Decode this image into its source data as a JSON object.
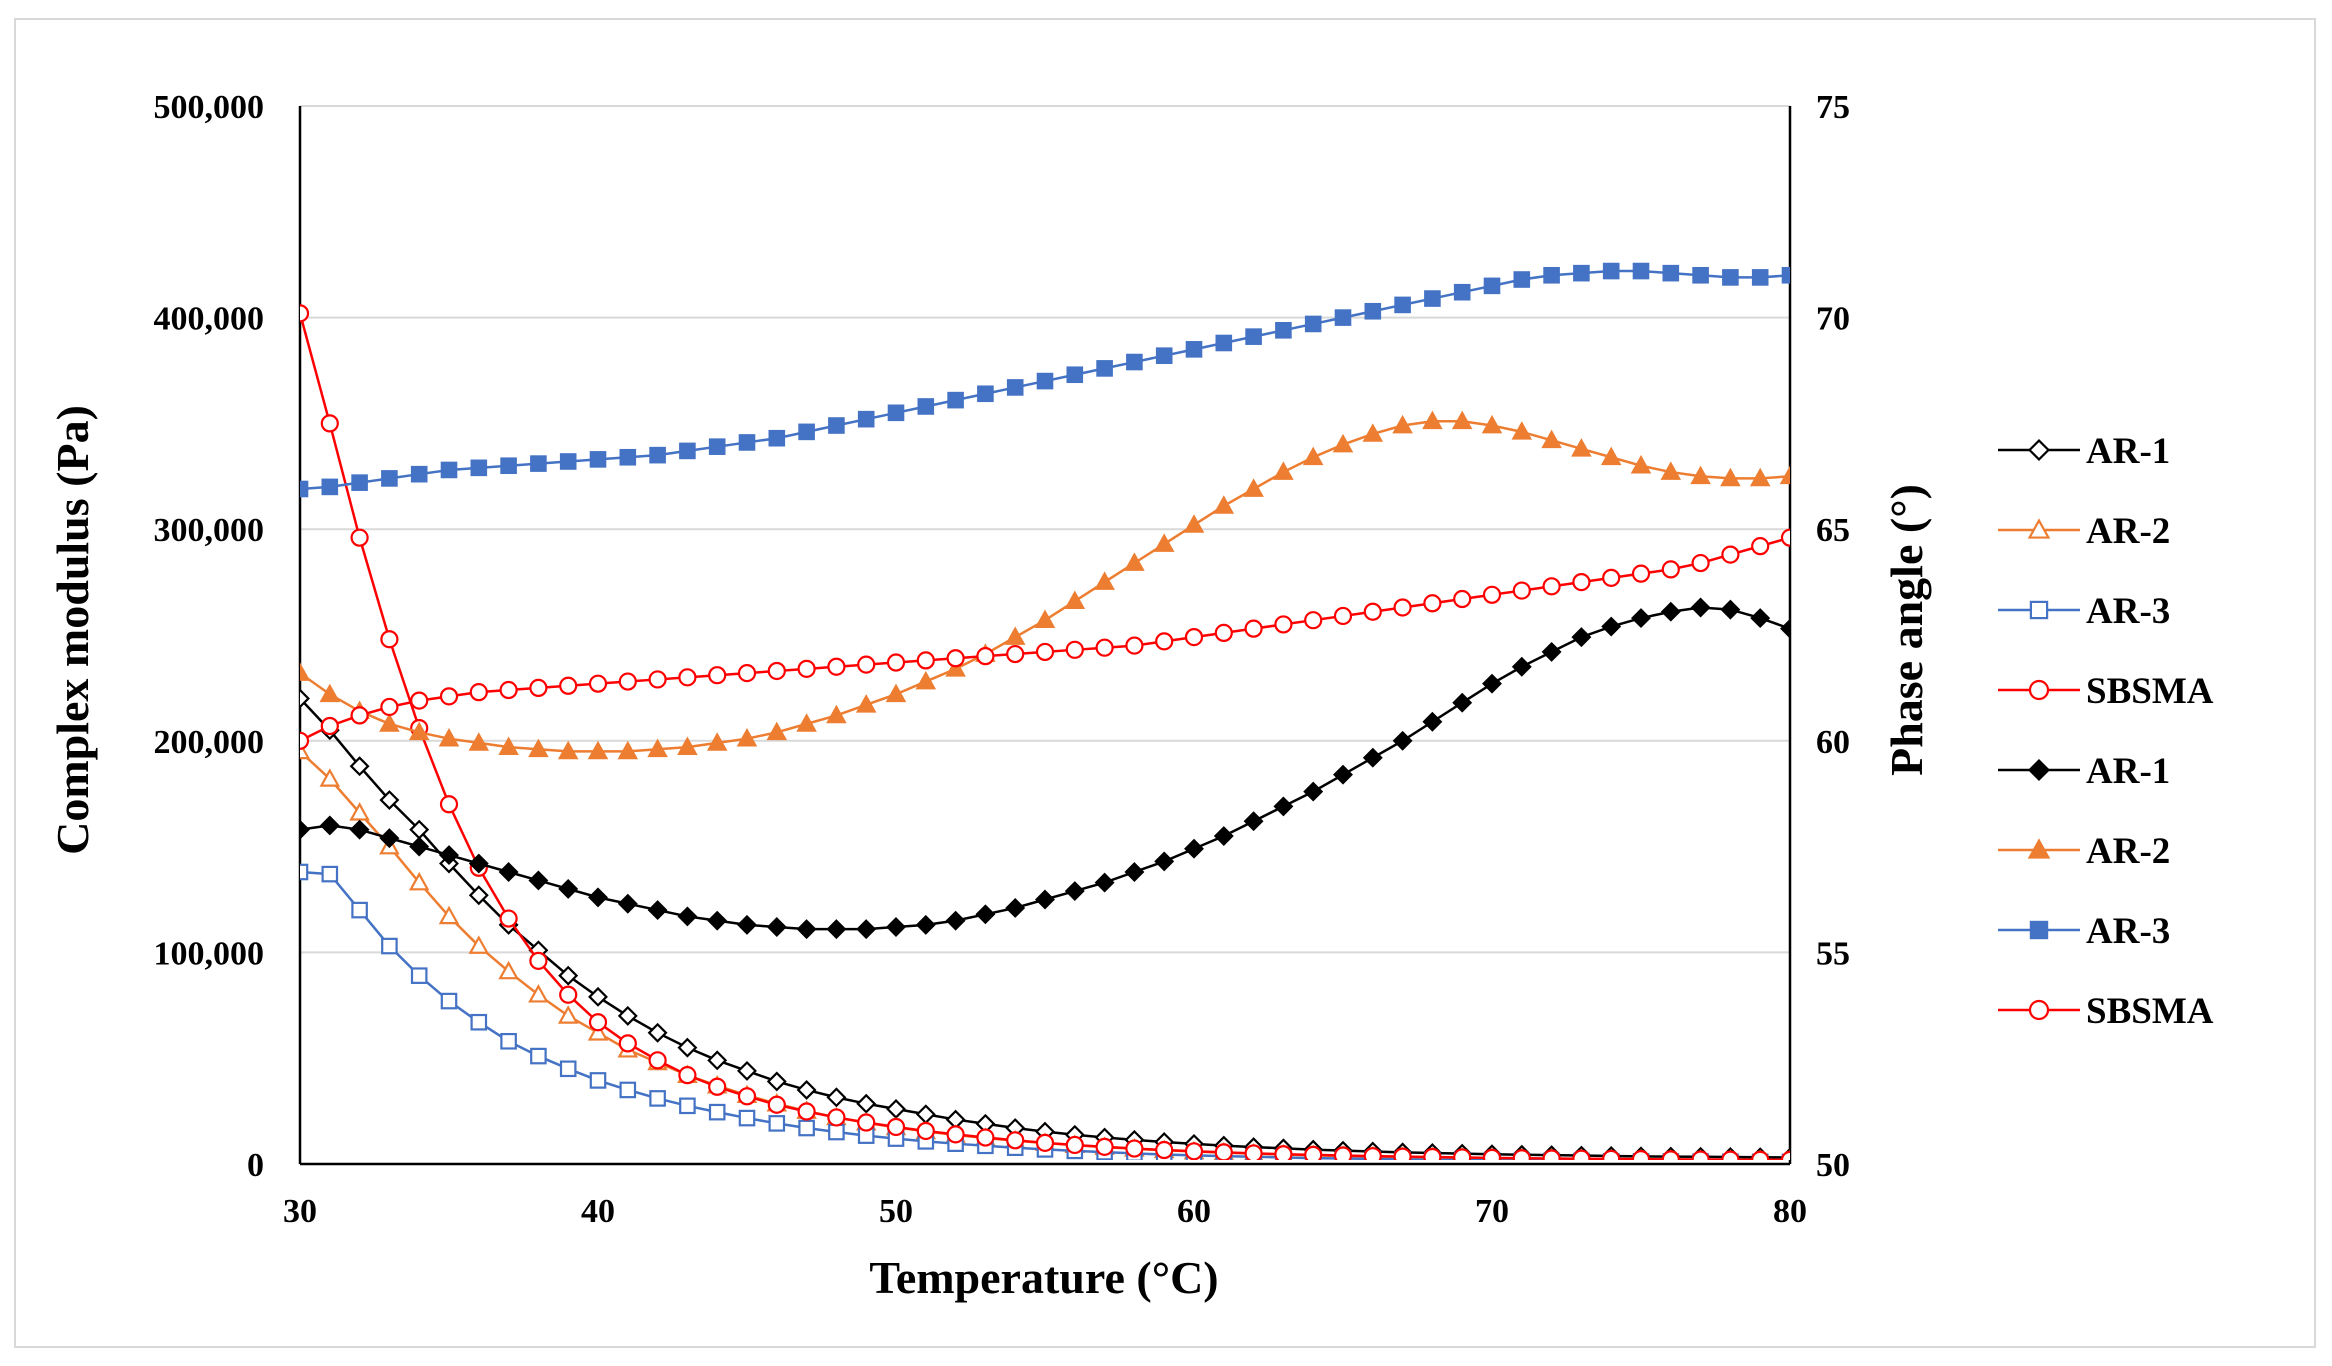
{
  "chart_data": {
    "type": "line",
    "title": "",
    "xlabel": "Temperature (°C)",
    "ylabel": "Complex modulus (Pa)",
    "y2label": "Phase angle (°)",
    "xlim": [
      30,
      80
    ],
    "ylim": [
      0,
      500000
    ],
    "y2lim": [
      50,
      75
    ],
    "x_ticks": [
      30,
      40,
      50,
      60,
      70,
      80
    ],
    "x_tick_labels": [
      "30",
      "40",
      "50",
      "60",
      "70",
      "80"
    ],
    "y_ticks": [
      0,
      100000,
      200000,
      300000,
      400000,
      500000
    ],
    "y_tick_labels": [
      "0",
      "100,000",
      "200,000",
      "300,000",
      "400,000",
      "500,000"
    ],
    "y2_ticks": [
      50,
      55,
      60,
      65,
      70,
      75
    ],
    "y2_tick_labels": [
      "50",
      "55",
      "60",
      "65",
      "70",
      "75"
    ],
    "grid": "horizontal",
    "legend_position": "right",
    "x": [
      30,
      31,
      32,
      33,
      34,
      35,
      36,
      37,
      38,
      39,
      40,
      41,
      42,
      43,
      44,
      45,
      46,
      47,
      48,
      49,
      50,
      51,
      52,
      53,
      54,
      55,
      56,
      57,
      58,
      59,
      60,
      61,
      62,
      63,
      64,
      65,
      66,
      67,
      68,
      69,
      70,
      71,
      72,
      73,
      74,
      75,
      76,
      77,
      78,
      79,
      80
    ],
    "series": [
      {
        "name": "AR-1",
        "axis": "left",
        "marker": "diamond-open",
        "color": "#000000",
        "values": [
          220000,
          205000,
          188000,
          172000,
          158000,
          142000,
          127000,
          113000,
          101000,
          89000,
          79000,
          70000,
          62000,
          55000,
          49000,
          44000,
          39000,
          35000,
          31500,
          28500,
          26000,
          23500,
          21000,
          19000,
          17000,
          15300,
          13800,
          12500,
          11400,
          10400,
          9500,
          8700,
          8000,
          7400,
          6800,
          6300,
          5900,
          5500,
          5200,
          4900,
          4600,
          4400,
          4200,
          4000,
          3800,
          3600,
          3500,
          3400,
          3300,
          3200,
          3100
        ]
      },
      {
        "name": "AR-2",
        "axis": "left",
        "marker": "triangle-open",
        "color": "#ED7D31",
        "values": [
          195000,
          182000,
          166000,
          150000,
          133000,
          117000,
          103000,
          91000,
          80000,
          70000,
          62000,
          54000,
          48000,
          42000,
          37000,
          32500,
          28500,
          25000,
          22000,
          19500,
          17300,
          15400,
          13700,
          12300,
          11000,
          9900,
          8900,
          8000,
          7200,
          6500,
          5900,
          5400,
          4900,
          4500,
          4100,
          3800,
          3500,
          3300,
          3100,
          2900,
          2700,
          2500,
          2400,
          2300,
          2200,
          2100,
          2000,
          1950,
          1900,
          1850,
          1800
        ]
      },
      {
        "name": "AR-3",
        "axis": "left",
        "marker": "square-open",
        "color": "#4472C4",
        "values": [
          138000,
          137000,
          120000,
          103000,
          89000,
          77000,
          67000,
          58000,
          51000,
          45000,
          39500,
          35000,
          31000,
          27500,
          24500,
          21700,
          19200,
          17000,
          15100,
          13400,
          12000,
          10700,
          9600,
          8600,
          7700,
          6900,
          6200,
          5600,
          5000,
          4500,
          4100,
          3700,
          3400,
          3100,
          2800,
          2600,
          2400,
          2200,
          2000,
          1850,
          1700,
          1600,
          1500,
          1400,
          1300,
          1250,
          1200,
          1150,
          1100,
          1050,
          1000
        ]
      },
      {
        "name": "SBSMA",
        "axis": "left",
        "marker": "circle-open",
        "color": "#FF0000",
        "values": [
          402000,
          350000,
          296000,
          248000,
          206000,
          170000,
          140000,
          116000,
          96000,
          80000,
          67000,
          57000,
          49000,
          42000,
          36500,
          32000,
          28000,
          24800,
          22000,
          19600,
          17500,
          15600,
          14000,
          12500,
          11200,
          10000,
          9000,
          8100,
          7300,
          6600,
          6000,
          5500,
          5000,
          4600,
          4300,
          4000,
          3700,
          3500,
          3300,
          3100,
          2900,
          2700,
          2600,
          2500,
          2400,
          2300,
          2200,
          2100,
          2050,
          2000,
          1950
        ]
      },
      {
        "name": "AR-1",
        "axis": "right",
        "marker": "diamond-filled",
        "color": "#000000",
        "values": [
          57.9,
          58.0,
          57.9,
          57.7,
          57.5,
          57.3,
          57.1,
          56.9,
          56.7,
          56.5,
          56.3,
          56.15,
          56.0,
          55.85,
          55.75,
          55.65,
          55.6,
          55.55,
          55.55,
          55.55,
          55.6,
          55.65,
          55.75,
          55.9,
          56.05,
          56.25,
          56.45,
          56.65,
          56.9,
          57.15,
          57.45,
          57.75,
          58.1,
          58.45,
          58.8,
          59.2,
          59.6,
          60.0,
          60.45,
          60.9,
          61.35,
          61.75,
          62.1,
          62.45,
          62.7,
          62.9,
          63.05,
          63.15,
          63.1,
          62.9,
          62.65
        ]
      },
      {
        "name": "AR-2",
        "axis": "right",
        "marker": "triangle-filled",
        "color": "#ED7D31",
        "values": [
          61.6,
          61.1,
          60.7,
          60.4,
          60.2,
          60.05,
          59.95,
          59.85,
          59.8,
          59.75,
          59.75,
          59.75,
          59.8,
          59.85,
          59.95,
          60.05,
          60.2,
          60.4,
          60.6,
          60.85,
          61.1,
          61.4,
          61.7,
          62.05,
          62.45,
          62.85,
          63.3,
          63.75,
          64.2,
          64.65,
          65.1,
          65.55,
          65.95,
          66.35,
          66.7,
          67.0,
          67.25,
          67.45,
          67.55,
          67.55,
          67.45,
          67.3,
          67.1,
          66.9,
          66.7,
          66.5,
          66.35,
          66.25,
          66.2,
          66.2,
          66.25
        ]
      },
      {
        "name": "AR-3",
        "axis": "right",
        "marker": "square-filled",
        "color": "#4472C4",
        "values": [
          65.95,
          66.0,
          66.1,
          66.2,
          66.3,
          66.4,
          66.45,
          66.5,
          66.55,
          66.6,
          66.65,
          66.7,
          66.75,
          66.85,
          66.95,
          67.05,
          67.15,
          67.3,
          67.45,
          67.6,
          67.75,
          67.9,
          68.05,
          68.2,
          68.35,
          68.5,
          68.65,
          68.8,
          68.95,
          69.1,
          69.25,
          69.4,
          69.55,
          69.7,
          69.85,
          70.0,
          70.15,
          70.3,
          70.45,
          70.6,
          70.75,
          70.9,
          71.0,
          71.05,
          71.1,
          71.1,
          71.05,
          71.0,
          70.95,
          70.95,
          71.0
        ]
      },
      {
        "name": "SBSMA",
        "axis": "right",
        "marker": "circle-open",
        "color": "#FF0000",
        "values": [
          60.0,
          60.35,
          60.6,
          60.8,
          60.95,
          61.05,
          61.15,
          61.2,
          61.25,
          61.3,
          61.35,
          61.4,
          61.45,
          61.5,
          61.55,
          61.6,
          61.65,
          61.7,
          61.75,
          61.8,
          61.85,
          61.9,
          61.95,
          62.0,
          62.05,
          62.1,
          62.15,
          62.2,
          62.25,
          62.35,
          62.45,
          62.55,
          62.65,
          62.75,
          62.85,
          62.95,
          63.05,
          63.15,
          63.25,
          63.35,
          63.45,
          63.55,
          63.65,
          63.75,
          63.85,
          63.95,
          64.05,
          64.2,
          64.4,
          64.6,
          64.8
        ]
      }
    ]
  }
}
